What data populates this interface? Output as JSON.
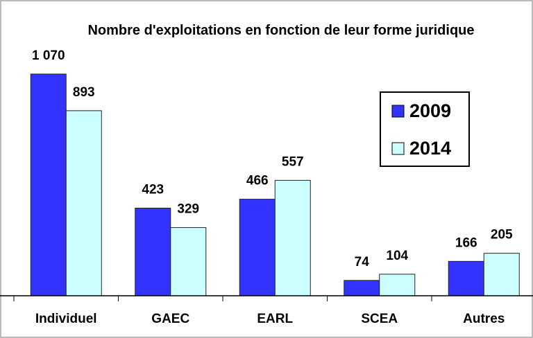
{
  "chart_data": {
    "type": "bar",
    "title": "Nombre d'exploitations en fonction de leur forme juridique",
    "categories": [
      "Individuel",
      "GAEC",
      "EARL",
      "SCEA",
      "Autres"
    ],
    "series": [
      {
        "name": "2009",
        "color": "#3333ff",
        "values": [
          1070,
          423,
          466,
          74,
          166
        ],
        "value_labels": [
          "1 070",
          "423",
          "466",
          "74",
          "166"
        ]
      },
      {
        "name": "2014",
        "color": "#ccffff",
        "values": [
          893,
          329,
          557,
          104,
          205
        ],
        "value_labels": [
          "893",
          "329",
          "557",
          "104",
          "205"
        ]
      }
    ],
    "ylim": [
      0,
      1200
    ],
    "legend": "upper right"
  }
}
